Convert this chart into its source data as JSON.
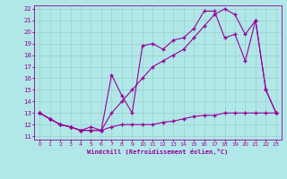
{
  "xlabel": "Windchill (Refroidissement éolien,°C)",
  "bg_color": "#b0e8e8",
  "line_color": "#990099",
  "grid_color": "#9ecece",
  "xlim": [
    -0.5,
    23.5
  ],
  "ylim": [
    10.7,
    22.3
  ],
  "xticks": [
    0,
    1,
    2,
    3,
    4,
    5,
    6,
    7,
    8,
    9,
    10,
    11,
    12,
    13,
    14,
    15,
    16,
    17,
    18,
    19,
    20,
    21,
    22,
    23
  ],
  "yticks": [
    11,
    12,
    13,
    14,
    15,
    16,
    17,
    18,
    19,
    20,
    21,
    22
  ],
  "line1_x": [
    0,
    1,
    2,
    3,
    4,
    5,
    6,
    7,
    8,
    9,
    10,
    11,
    12,
    13,
    14,
    15,
    16,
    17,
    18,
    19,
    20,
    21,
    22,
    23
  ],
  "line1_y": [
    13.0,
    12.5,
    12.0,
    11.8,
    11.5,
    11.5,
    11.5,
    11.8,
    12.0,
    12.0,
    12.0,
    12.0,
    12.2,
    12.3,
    12.5,
    12.7,
    12.8,
    12.8,
    13.0,
    13.0,
    13.0,
    13.0,
    13.0,
    13.0
  ],
  "line2_x": [
    0,
    1,
    2,
    3,
    4,
    5,
    6,
    7,
    8,
    9,
    10,
    11,
    12,
    13,
    14,
    15,
    16,
    17,
    18,
    19,
    20,
    21,
    22,
    23
  ],
  "line2_y": [
    13.0,
    12.5,
    12.0,
    11.8,
    11.5,
    11.8,
    11.5,
    16.3,
    14.5,
    13.0,
    18.8,
    19.0,
    18.5,
    19.3,
    19.5,
    20.3,
    21.8,
    21.8,
    19.5,
    19.8,
    17.5,
    21.0,
    15.0,
    13.0
  ],
  "line3_x": [
    0,
    1,
    2,
    3,
    4,
    5,
    6,
    7,
    8,
    9,
    10,
    11,
    12,
    13,
    14,
    15,
    16,
    17,
    18,
    19,
    20,
    21,
    22,
    23
  ],
  "line3_y": [
    13.0,
    12.5,
    12.0,
    11.8,
    11.5,
    11.5,
    11.5,
    13.0,
    14.0,
    15.0,
    16.0,
    17.0,
    17.5,
    18.0,
    18.5,
    19.5,
    20.5,
    21.5,
    22.0,
    21.5,
    19.8,
    21.0,
    15.0,
    13.0
  ]
}
